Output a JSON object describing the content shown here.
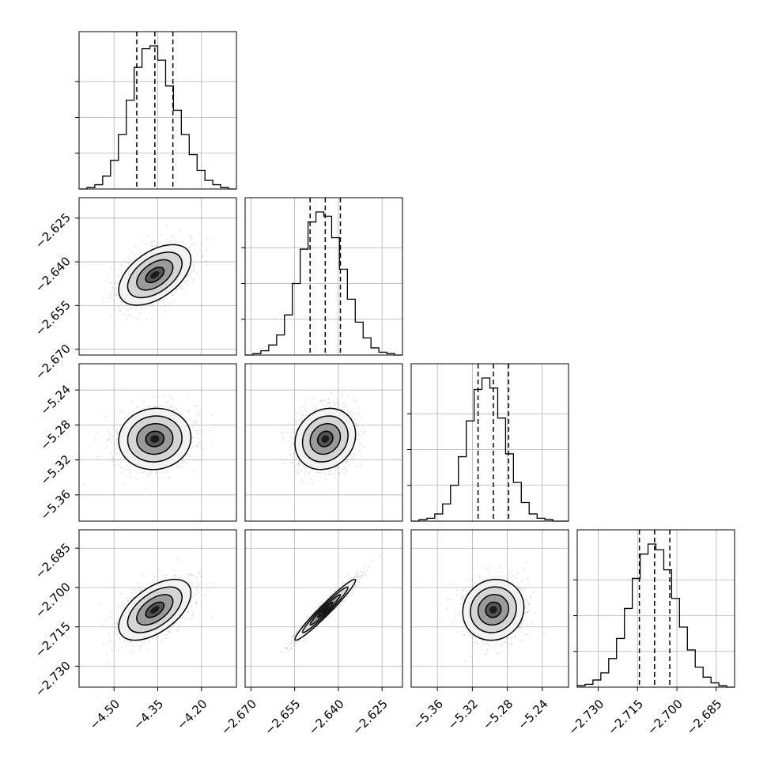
{
  "chart_data": {
    "type": "scatter",
    "kind": "corner-plot",
    "grid": true,
    "colors": {
      "frame": "#000000",
      "grid": "#b0b0b0",
      "samples": "#9e9e9e",
      "contour": "#000000",
      "hist": "#000000"
    },
    "quantiles": [
      0.16,
      0.5,
      0.84
    ],
    "parameters": [
      {
        "range": [
          -4.62,
          -4.08
        ],
        "mean": -4.36,
        "std": 0.062,
        "ticks": [
          -4.5,
          -4.35,
          -4.2
        ],
        "tick_labels": [
          "−4.50",
          "−4.35",
          "−4.20"
        ]
      },
      {
        "range": [
          -2.672,
          -2.618
        ],
        "mean": -2.6445,
        "std": 0.0052,
        "ticks": [
          -2.67,
          -2.655,
          -2.64,
          -2.625
        ],
        "tick_labels": [
          "−2.670",
          "−2.655",
          "−2.640",
          "−2.625"
        ]
      },
      {
        "range": [
          -5.39,
          -5.21
        ],
        "mean": -5.296,
        "std": 0.0175,
        "ticks": [
          -5.36,
          -5.32,
          -5.28,
          -5.24
        ],
        "tick_labels": [
          "−5.36",
          "−5.32",
          "−5.28",
          "−5.24"
        ]
      },
      {
        "range": [
          -2.738,
          -2.678
        ],
        "mean": -2.7085,
        "std": 0.0058,
        "ticks": [
          -2.73,
          -2.715,
          -2.7,
          -2.685
        ],
        "tick_labels": [
          "−2.730",
          "−2.715",
          "−2.700",
          "−2.685"
        ]
      }
    ],
    "correlations": [
      [
        1,
        0.5,
        0.05,
        0.55
      ],
      [
        0.5,
        1,
        0.15,
        0.97
      ],
      [
        0.05,
        0.15,
        1,
        0.08
      ],
      [
        0.55,
        0.97,
        0.08,
        1
      ]
    ],
    "hist_bins": [
      [
        0.0,
        0.01,
        0.03,
        0.09,
        0.2,
        0.38,
        0.62,
        0.85,
        0.98,
        1.0,
        0.9,
        0.72,
        0.55,
        0.38,
        0.24,
        0.13,
        0.06,
        0.03,
        0.01,
        0.0
      ],
      [
        0.0,
        0.01,
        0.03,
        0.07,
        0.14,
        0.28,
        0.5,
        0.74,
        0.93,
        1.0,
        0.97,
        0.82,
        0.6,
        0.39,
        0.23,
        0.12,
        0.05,
        0.02,
        0.01,
        0.0
      ],
      [
        0.0,
        0.01,
        0.02,
        0.05,
        0.12,
        0.25,
        0.45,
        0.7,
        0.92,
        1.0,
        0.93,
        0.72,
        0.47,
        0.27,
        0.13,
        0.05,
        0.02,
        0.01,
        0.0,
        0.0
      ],
      [
        0.01,
        0.02,
        0.05,
        0.1,
        0.2,
        0.34,
        0.55,
        0.76,
        0.93,
        1.0,
        0.96,
        0.82,
        0.62,
        0.42,
        0.26,
        0.14,
        0.07,
        0.03,
        0.01,
        0.0
      ]
    ],
    "contour_levels": [
      0.118,
      0.393,
      0.675,
      0.865
    ]
  }
}
